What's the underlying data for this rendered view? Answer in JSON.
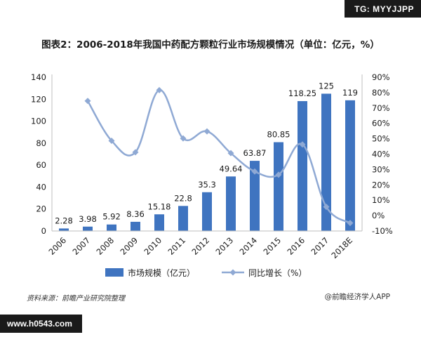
{
  "badges": {
    "top_right": "TG: MYYJJPP",
    "bottom_left": "www.h0543.com"
  },
  "footer": {
    "source": "资料来源：前瞻产业研究院整理",
    "credit": "@前瞻经济学人APP"
  },
  "colors": {
    "bar": "#3f74c0",
    "line": "#8fa9d4",
    "marker": "#8fa9d4",
    "grid": "#d9d9d9"
  },
  "chart_data": {
    "type": "bar",
    "title": "图表2：2006-2018年我国中药配方颗粒行业市场规模情况（单位：亿元，%）",
    "categories": [
      "2006",
      "2007",
      "2008",
      "2009",
      "2010",
      "2011",
      "2012",
      "2013",
      "2014",
      "2015",
      "2016",
      "2017",
      "2018E"
    ],
    "series": [
      {
        "name": "市场规模（亿元）",
        "type": "bar",
        "axis": "left",
        "values": [
          2.28,
          3.98,
          5.92,
          8.36,
          15.18,
          22.8,
          35.3,
          49.64,
          63.87,
          80.85,
          118.25,
          125,
          119
        ],
        "labels": [
          "2.28",
          "3.98",
          "5.92",
          "8.36",
          "15.18",
          "22.8",
          "35.3",
          "49.64",
          "63.87",
          "80.85",
          "118.25",
          "125",
          "119"
        ]
      },
      {
        "name": "同比增长（%）",
        "type": "line",
        "axis": "right",
        "values": [
          null,
          74.6,
          48.7,
          41.2,
          81.6,
          50.2,
          54.8,
          40.6,
          28.7,
          26.6,
          46.3,
          5.7,
          -4.8
        ]
      }
    ],
    "y_left": {
      "min": 0,
      "max": 140,
      "ticks": [
        "0",
        "20",
        "40",
        "60",
        "80",
        "100",
        "120",
        "140"
      ]
    },
    "y_right": {
      "min": -10,
      "max": 90,
      "ticks": [
        "-10%",
        "0%",
        "10%",
        "20%",
        "30%",
        "40%",
        "50%",
        "60%",
        "70%",
        "80%",
        "90%"
      ]
    },
    "legend": {
      "position": "bottom"
    },
    "grid": false
  }
}
